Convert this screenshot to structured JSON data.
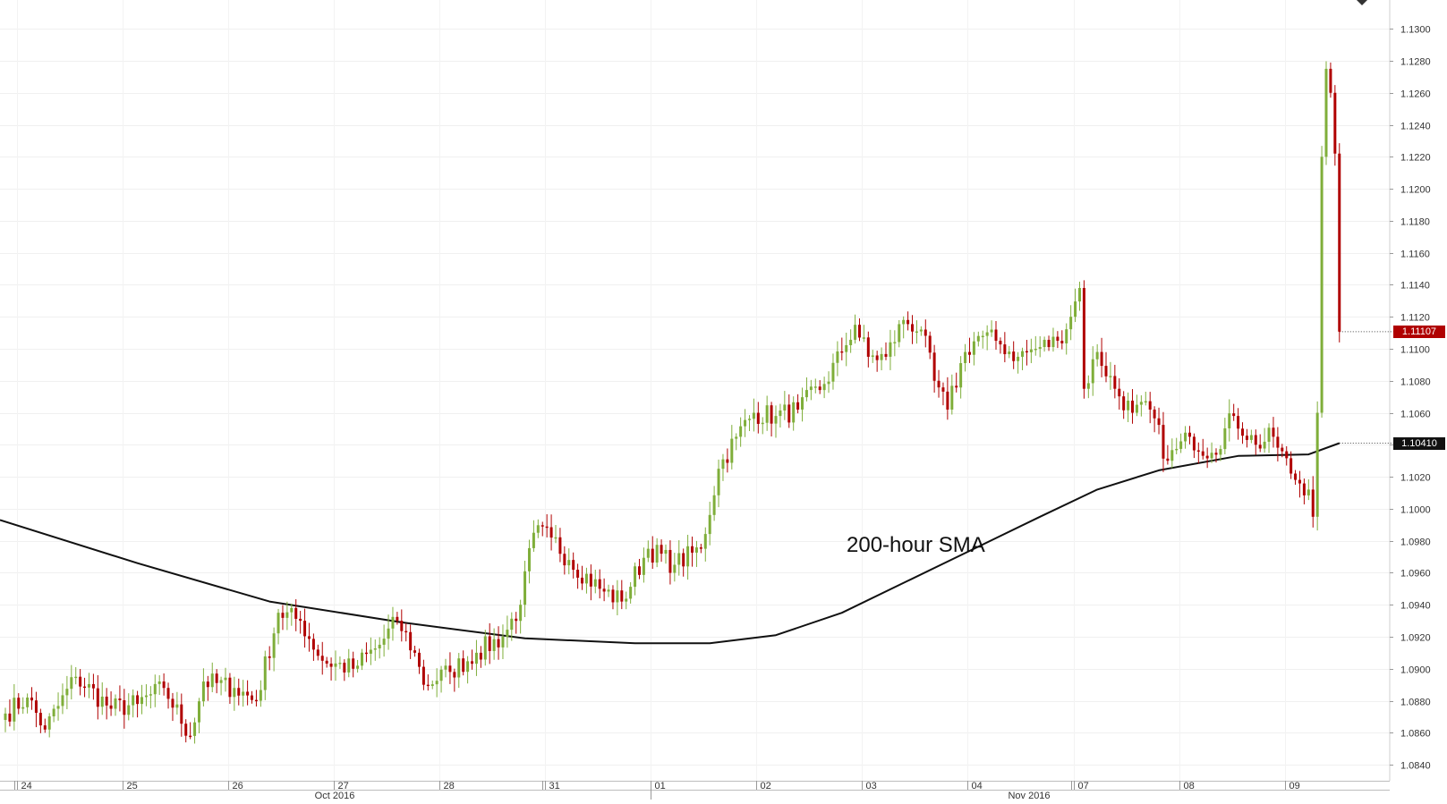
{
  "chart_data": {
    "type": "candlestick",
    "annotation": "200-hour SMA",
    "price_axis": {
      "min": 1.083,
      "max": 1.1318,
      "ticks": [
        "1.1300",
        "1.1280",
        "1.1260",
        "1.1240",
        "1.1220",
        "1.1200",
        "1.1180",
        "1.1160",
        "1.1140",
        "1.1120",
        "1.1100",
        "1.1080",
        "1.1060",
        "1.1040",
        "1.1020",
        "1.1000",
        "1.0980",
        "1.0960",
        "1.0940",
        "1.0920",
        "1.0900",
        "1.0880",
        "1.0860",
        "1.0840"
      ]
    },
    "last_price": {
      "value": 1.11107,
      "label": "1.11107"
    },
    "sma_value": {
      "value": 1.1041,
      "label": "1.10410"
    },
    "colors": {
      "up": "#7fae3a",
      "down": "#b00000",
      "sma": "#111111",
      "last_tag": "#b00000",
      "sma_tag": "#111111"
    },
    "day_labels": [
      "24",
      "25",
      "26",
      "27",
      "28",
      "31",
      "01",
      "02",
      "03",
      "04",
      "07",
      "08",
      "09"
    ],
    "month_labels": [
      "Oct 2016",
      "Nov 2016"
    ],
    "anchors": [
      {
        "i": 0,
        "p": 1.0872
      },
      {
        "i": 5,
        "p": 1.0882
      },
      {
        "i": 9,
        "p": 1.0862
      },
      {
        "i": 16,
        "p": 1.0895
      },
      {
        "i": 24,
        "p": 1.0875
      },
      {
        "i": 30,
        "p": 1.0878
      },
      {
        "i": 36,
        "p": 1.0888
      },
      {
        "i": 42,
        "p": 1.0858
      },
      {
        "i": 45,
        "p": 1.0892
      },
      {
        "i": 52,
        "p": 1.0888
      },
      {
        "i": 57,
        "p": 1.088
      },
      {
        "i": 62,
        "p": 1.0935
      },
      {
        "i": 67,
        "p": 1.093
      },
      {
        "i": 72,
        "p": 1.0905
      },
      {
        "i": 79,
        "p": 1.09
      },
      {
        "i": 85,
        "p": 1.0915
      },
      {
        "i": 89,
        "p": 1.093
      },
      {
        "i": 93,
        "p": 1.091
      },
      {
        "i": 95,
        "p": 1.089
      },
      {
        "i": 101,
        "p": 1.0898
      },
      {
        "i": 107,
        "p": 1.091
      },
      {
        "i": 113,
        "p": 1.092
      },
      {
        "i": 117,
        "p": 1.094
      },
      {
        "i": 120,
        "p": 1.0985
      },
      {
        "i": 124,
        "p": 1.0982
      },
      {
        "i": 128,
        "p": 1.0968
      },
      {
        "i": 135,
        "p": 1.095
      },
      {
        "i": 140,
        "p": 1.0942
      },
      {
        "i": 146,
        "p": 1.0975
      },
      {
        "i": 152,
        "p": 1.0965
      },
      {
        "i": 158,
        "p": 1.0975
      },
      {
        "i": 162,
        "p": 1.1025
      },
      {
        "i": 166,
        "p": 1.1045
      },
      {
        "i": 170,
        "p": 1.106
      },
      {
        "i": 175,
        "p": 1.1058
      },
      {
        "i": 180,
        "p": 1.1062
      },
      {
        "i": 186,
        "p": 1.1078
      },
      {
        "i": 190,
        "p": 1.1098
      },
      {
        "i": 193,
        "p": 1.1115
      },
      {
        "i": 196,
        "p": 1.1095
      },
      {
        "i": 200,
        "p": 1.1095
      },
      {
        "i": 204,
        "p": 1.1118
      },
      {
        "i": 208,
        "p": 1.1112
      },
      {
        "i": 211,
        "p": 1.108
      },
      {
        "i": 214,
        "p": 1.1062
      },
      {
        "i": 218,
        "p": 1.1098
      },
      {
        "i": 221,
        "p": 1.1108
      },
      {
        "i": 225,
        "p": 1.1105
      },
      {
        "i": 230,
        "p": 1.1095
      },
      {
        "i": 234,
        "p": 1.11
      },
      {
        "i": 239,
        "p": 1.1105
      },
      {
        "i": 242,
        "p": 1.112
      },
      {
        "i": 244,
        "p": 1.1138
      },
      {
        "i": 245,
        "p": 1.1075
      },
      {
        "i": 248,
        "p": 1.1098
      },
      {
        "i": 252,
        "p": 1.1075
      },
      {
        "i": 256,
        "p": 1.106
      },
      {
        "i": 260,
        "p": 1.1062
      },
      {
        "i": 264,
        "p": 1.103
      },
      {
        "i": 269,
        "p": 1.1045
      },
      {
        "i": 274,
        "p": 1.1035
      },
      {
        "i": 279,
        "p": 1.1058
      },
      {
        "i": 284,
        "p": 1.104
      },
      {
        "i": 288,
        "p": 1.1045
      },
      {
        "i": 292,
        "p": 1.1022
      },
      {
        "i": 296,
        "p": 1.1012
      },
      {
        "i": 297,
        "p": 1.0995
      },
      {
        "i": 298,
        "p": 1.106
      },
      {
        "i": 299,
        "p": 1.122
      },
      {
        "i": 300,
        "p": 1.1275
      },
      {
        "i": 301,
        "p": 1.126
      },
      {
        "i": 302,
        "p": 1.1222
      },
      {
        "i": 303,
        "p": 1.11107
      }
    ],
    "sma_points": [
      {
        "i": 0,
        "p": 1.0993
      },
      {
        "i": 30,
        "p": 1.0966
      },
      {
        "i": 60,
        "p": 1.0942
      },
      {
        "i": 90,
        "p": 1.0929
      },
      {
        "i": 118,
        "p": 1.0919
      },
      {
        "i": 143,
        "p": 1.0916
      },
      {
        "i": 160,
        "p": 1.0916
      },
      {
        "i": 175,
        "p": 1.0921
      },
      {
        "i": 190,
        "p": 1.0935
      },
      {
        "i": 205,
        "p": 1.0955
      },
      {
        "i": 220,
        "p": 1.0975
      },
      {
        "i": 235,
        "p": 1.0995
      },
      {
        "i": 248,
        "p": 1.1012
      },
      {
        "i": 262,
        "p": 1.1024
      },
      {
        "i": 280,
        "p": 1.1033
      },
      {
        "i": 296,
        "p": 1.1034
      },
      {
        "i": 303,
        "p": 1.1041
      }
    ]
  }
}
